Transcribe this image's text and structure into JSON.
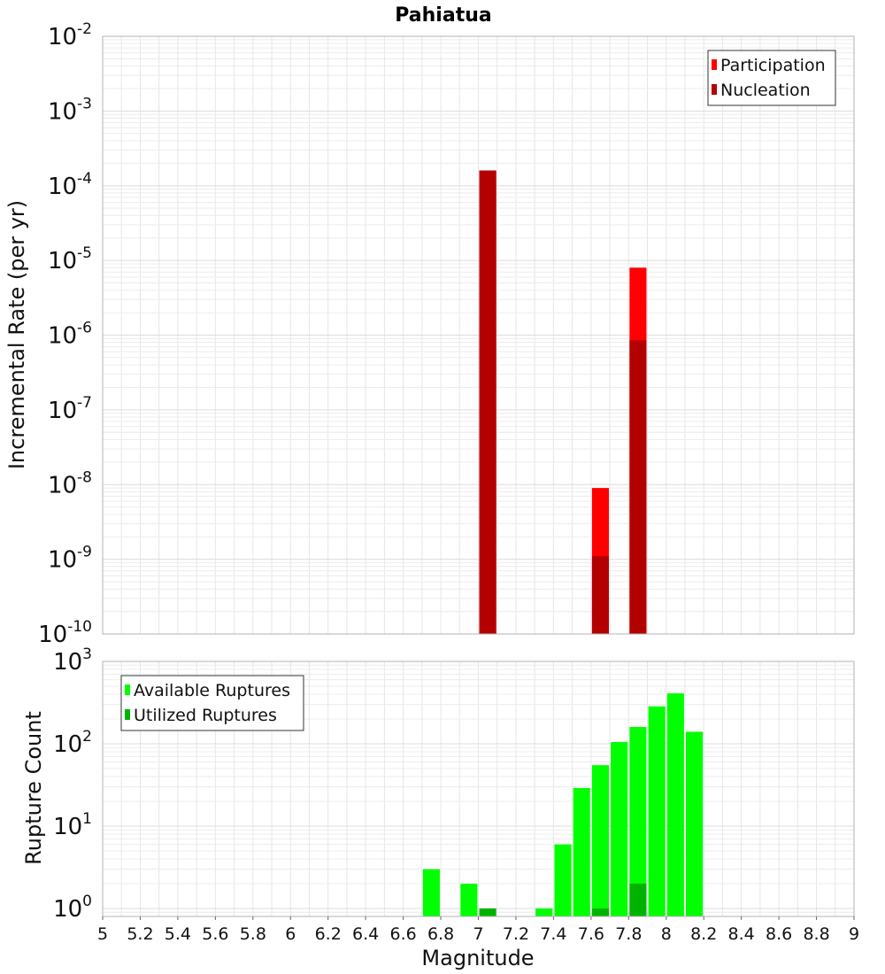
{
  "chart_data": [
    {
      "type": "bar",
      "title": "Pahiatua",
      "ylabel": "Incremental Rate (per yr)",
      "xlabel": "",
      "yscale": "log",
      "ylim": [
        1e-10,
        0.01
      ],
      "xlim": [
        5,
        9
      ],
      "y_ticks": [
        {
          "base": "10",
          "exp": "-10"
        },
        {
          "base": "10",
          "exp": "-9"
        },
        {
          "base": "10",
          "exp": "-8"
        },
        {
          "base": "10",
          "exp": "-7"
        },
        {
          "base": "10",
          "exp": "-6"
        },
        {
          "base": "10",
          "exp": "-5"
        },
        {
          "base": "10",
          "exp": "-4"
        },
        {
          "base": "10",
          "exp": "-3"
        },
        {
          "base": "10",
          "exp": "-2"
        }
      ],
      "grid": true,
      "legend_position": "top-right",
      "series": [
        {
          "name": "Participation",
          "color": "#ff0000",
          "points": [
            {
              "x": 7.05,
              "y": 0.00016
            },
            {
              "x": 7.65,
              "y": 9e-09
            },
            {
              "x": 7.85,
              "y": 8e-06
            }
          ]
        },
        {
          "name": "Nucleation",
          "color": "#b30000",
          "points": [
            {
              "x": 7.05,
              "y": 0.00016
            },
            {
              "x": 7.65,
              "y": 1.1e-09
            },
            {
              "x": 7.85,
              "y": 8.5e-07
            }
          ]
        }
      ]
    },
    {
      "type": "bar",
      "title": "",
      "ylabel": "Rupture Count",
      "xlabel": "Magnitude",
      "yscale": "log",
      "ylim": [
        0.8,
        1000
      ],
      "xlim": [
        5,
        9
      ],
      "y_ticks": [
        {
          "base": "10",
          "exp": "0"
        },
        {
          "base": "10",
          "exp": "1"
        },
        {
          "base": "10",
          "exp": "2"
        },
        {
          "base": "10",
          "exp": "3"
        }
      ],
      "x_ticks": [
        "5",
        "5.2",
        "5.4",
        "5.6",
        "5.8",
        "6",
        "6.2",
        "6.4",
        "6.6",
        "6.8",
        "7",
        "7.2",
        "7.4",
        "7.6",
        "7.8",
        "8",
        "8.2",
        "8.4",
        "8.6",
        "8.8",
        "9"
      ],
      "grid": true,
      "legend_position": "top-left",
      "series": [
        {
          "name": "Available Ruptures",
          "color": "#00ff00",
          "points": [
            {
              "x": 6.75,
              "y": 3
            },
            {
              "x": 6.95,
              "y": 2
            },
            {
              "x": 7.35,
              "y": 1
            },
            {
              "x": 7.45,
              "y": 6
            },
            {
              "x": 7.55,
              "y": 29
            },
            {
              "x": 7.65,
              "y": 55
            },
            {
              "x": 7.75,
              "y": 105
            },
            {
              "x": 7.85,
              "y": 160
            },
            {
              "x": 7.95,
              "y": 285
            },
            {
              "x": 8.05,
              "y": 410
            },
            {
              "x": 8.15,
              "y": 140
            }
          ]
        },
        {
          "name": "Utilized Ruptures",
          "color": "#00b300",
          "points": [
            {
              "x": 7.05,
              "y": 1
            },
            {
              "x": 7.65,
              "y": 1
            },
            {
              "x": 7.85,
              "y": 2
            }
          ]
        }
      ]
    }
  ]
}
